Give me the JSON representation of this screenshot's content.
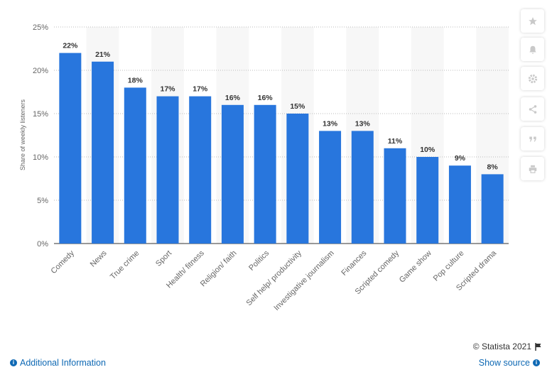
{
  "chart_data": {
    "type": "bar",
    "categories": [
      "Comedy",
      "News",
      "True crime",
      "Sport",
      "Health/ fitness",
      "Religion/ faith",
      "Politics",
      "Self help/ productivity",
      "Investigative journalism",
      "Finances",
      "Scripted comedy",
      "Game show",
      "Pop culture",
      "Scripted drama"
    ],
    "values": [
      22,
      21,
      18,
      17,
      17,
      16,
      16,
      15,
      13,
      13,
      11,
      10,
      9,
      8
    ],
    "value_labels": [
      "22%",
      "21%",
      "18%",
      "17%",
      "17%",
      "16%",
      "16%",
      "15%",
      "13%",
      "13%",
      "11%",
      "10%",
      "9%",
      "8%"
    ],
    "ylabel": "Share of weekly listeners",
    "yticks": [
      "0%",
      "5%",
      "10%",
      "15%",
      "20%",
      "25%"
    ],
    "ytick_values": [
      0,
      5,
      10,
      15,
      20,
      25
    ],
    "ylim": [
      0,
      25
    ],
    "grid": true,
    "bar_color": "#2876dd",
    "band_color": "#f7f7f7"
  },
  "toolbar": {
    "icons": [
      "star-icon",
      "bell-icon",
      "gear-icon",
      "share-icon",
      "quote-icon",
      "print-icon"
    ]
  },
  "credits": {
    "text": "© Statista 2021"
  },
  "footer": {
    "additional_info": "Additional Information",
    "show_source": "Show source"
  }
}
